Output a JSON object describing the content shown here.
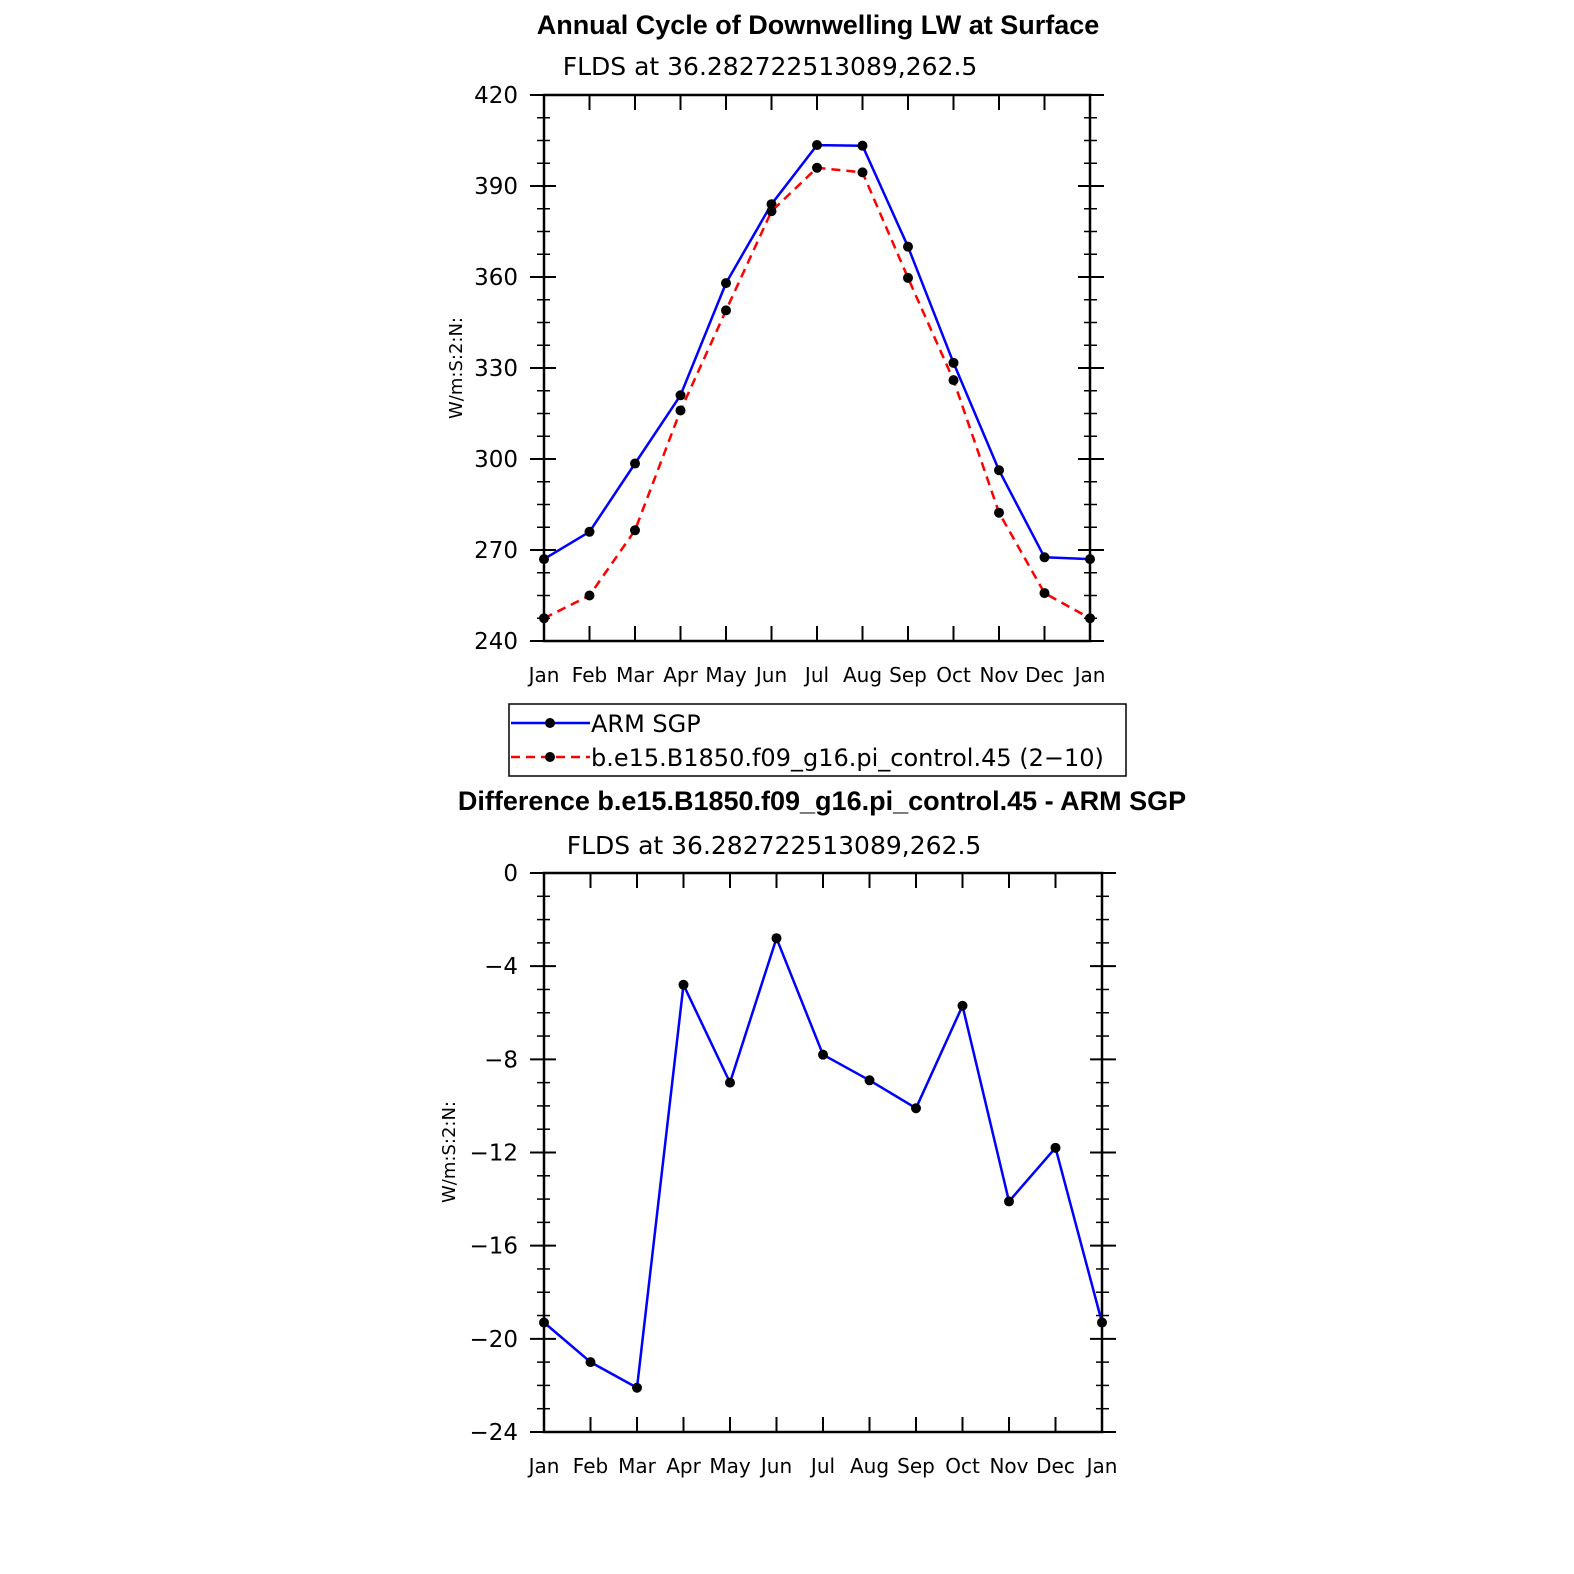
{
  "chart_data": [
    {
      "type": "line",
      "title": "Annual Cycle of Downwelling LW at Surface",
      "subtitle": "FLDS at 36.282722513089,262.5",
      "ylabel": "W/m:S:2:N:",
      "xlabel": "",
      "categories": [
        "Jan",
        "Feb",
        "Mar",
        "Apr",
        "May",
        "Jun",
        "Jul",
        "Aug",
        "Sep",
        "Oct",
        "Nov",
        "Dec",
        "Jan"
      ],
      "yticks": [
        "240",
        "270",
        "300",
        "330",
        "360",
        "390",
        "420"
      ],
      "ylim": [
        240,
        420
      ],
      "series": [
        {
          "name": "ARM SGP",
          "color": "#0000ff",
          "dash": "solid",
          "values": [
            267,
            276,
            298.5,
            321,
            358,
            384,
            403.5,
            403.3,
            370,
            331.7,
            296.3,
            267.6,
            267
          ]
        },
        {
          "name": "b.e15.B1850.f09_g16.pi_control.45 (2−10)",
          "color": "#ff0000",
          "dash": "dashed",
          "values": [
            247.5,
            255,
            276.5,
            316,
            349,
            381.7,
            396,
            394.5,
            359.7,
            326,
            282.3,
            255.8,
            247.5
          ]
        }
      ],
      "legend": "below"
    },
    {
      "type": "line",
      "title": "Difference b.e15.B1850.f09_g16.pi_control.45 - ARM SGP",
      "subtitle": "FLDS at 36.282722513089,262.5",
      "ylabel": "W/m:S:2:N:",
      "xlabel": "",
      "categories": [
        "Jan",
        "Feb",
        "Mar",
        "Apr",
        "May",
        "Jun",
        "Jul",
        "Aug",
        "Sep",
        "Oct",
        "Nov",
        "Dec",
        "Jan"
      ],
      "yticks": [
        "−24",
        "−20",
        "−16",
        "−12",
        "−8",
        "−4",
        "0"
      ],
      "ylim": [
        -24,
        0
      ],
      "series": [
        {
          "color": "#0000ff",
          "dash": "solid",
          "values": [
            -19.3,
            -21.0,
            -22.1,
            -4.8,
            -9.0,
            -2.8,
            -7.8,
            -8.9,
            -10.1,
            -5.7,
            -14.1,
            -11.8,
            -19.3
          ]
        }
      ]
    }
  ]
}
